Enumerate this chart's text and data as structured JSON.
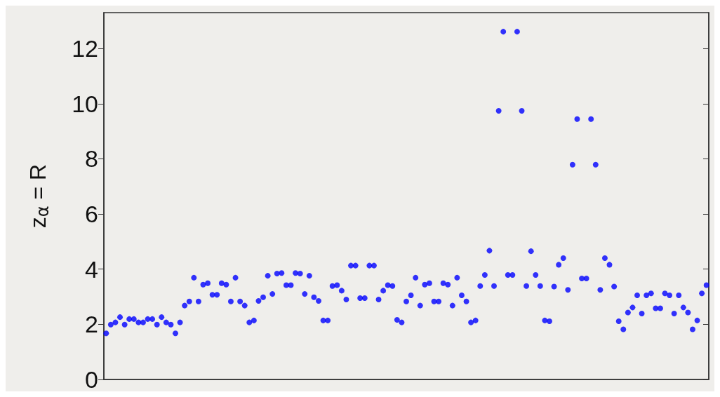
{
  "chart_data": {
    "type": "scatter",
    "ylabel": "z$_{α}$ = R",
    "marker": "circle",
    "grid": false,
    "ylim": [
      0,
      13.3
    ],
    "yticks": [
      0,
      2,
      4,
      6,
      8,
      10,
      12
    ],
    "categories": [
      null,
      null,
      null,
      null,
      null,
      null,
      null,
      null,
      null,
      null,
      null,
      null,
      null,
      null,
      null,
      null,
      null,
      null,
      null,
      null,
      null,
      null,
      null,
      null,
      null,
      null,
      null,
      null,
      null,
      null,
      null,
      null,
      null,
      null,
      null,
      null,
      null,
      null,
      null,
      null,
      null,
      null,
      null,
      null,
      null,
      null,
      null,
      null,
      null,
      null,
      null,
      null,
      null,
      null,
      null,
      null,
      null,
      null,
      null,
      null,
      null,
      null,
      null,
      null,
      null,
      null,
      null,
      null,
      null,
      null,
      null,
      null,
      null,
      null,
      null,
      null,
      null,
      null,
      null,
      null,
      null,
      null,
      null,
      null,
      null,
      null,
      null,
      null,
      null,
      null,
      null,
      null,
      null,
      null,
      null,
      null,
      null,
      null,
      null,
      null,
      null,
      null,
      null,
      null,
      null,
      null,
      null,
      null,
      null,
      null,
      null,
      null,
      null,
      null,
      null,
      null,
      null,
      null,
      null,
      null,
      null,
      null,
      null,
      null,
      null,
      null,
      null,
      null,
      null,
      null,
      null
    ],
    "series": [
      {
        "color": "#0000ff",
        "values": [
          1.67,
          1.99,
          2.07,
          2.26,
          1.99,
          2.19,
          2.19,
          2.07,
          2.07,
          2.19,
          2.19,
          1.99,
          2.26,
          2.07,
          1.99,
          1.67,
          2.07,
          2.68,
          2.83,
          3.69,
          2.83,
          3.44,
          3.49,
          3.07,
          3.07,
          3.49,
          3.44,
          2.83,
          3.69,
          2.83,
          2.68,
          2.07,
          2.14,
          2.85,
          2.98,
          3.76,
          3.1,
          3.84,
          3.86,
          3.42,
          3.42,
          3.86,
          3.84,
          3.1,
          3.76,
          2.98,
          2.85,
          2.14,
          2.14,
          3.39,
          3.42,
          3.22,
          2.9,
          4.13,
          4.13,
          2.95,
          2.95,
          4.13,
          4.13,
          2.9,
          3.22,
          3.42,
          3.39,
          2.16,
          2.07,
          2.83,
          3.05,
          3.69,
          2.68,
          3.44,
          3.49,
          2.83,
          2.83,
          3.49,
          3.44,
          2.68,
          3.69,
          3.05,
          2.83,
          2.07,
          2.14,
          3.39,
          3.79,
          4.67,
          3.39,
          9.74,
          12.61,
          3.79,
          3.79,
          12.61,
          9.74,
          3.39,
          4.65,
          3.79,
          3.39,
          2.14,
          2.11,
          3.37,
          4.16,
          4.4,
          3.25,
          7.79,
          9.44,
          3.66,
          3.66,
          9.44,
          7.79,
          3.25,
          4.4,
          4.16,
          3.37,
          2.11,
          1.82,
          2.43,
          2.61,
          3.05,
          2.39,
          3.05,
          3.12,
          2.58,
          2.58,
          3.12,
          3.05,
          2.39,
          3.05,
          2.61,
          2.43,
          1.82,
          2.14,
          3.12,
          3.42
        ]
      }
    ]
  }
}
